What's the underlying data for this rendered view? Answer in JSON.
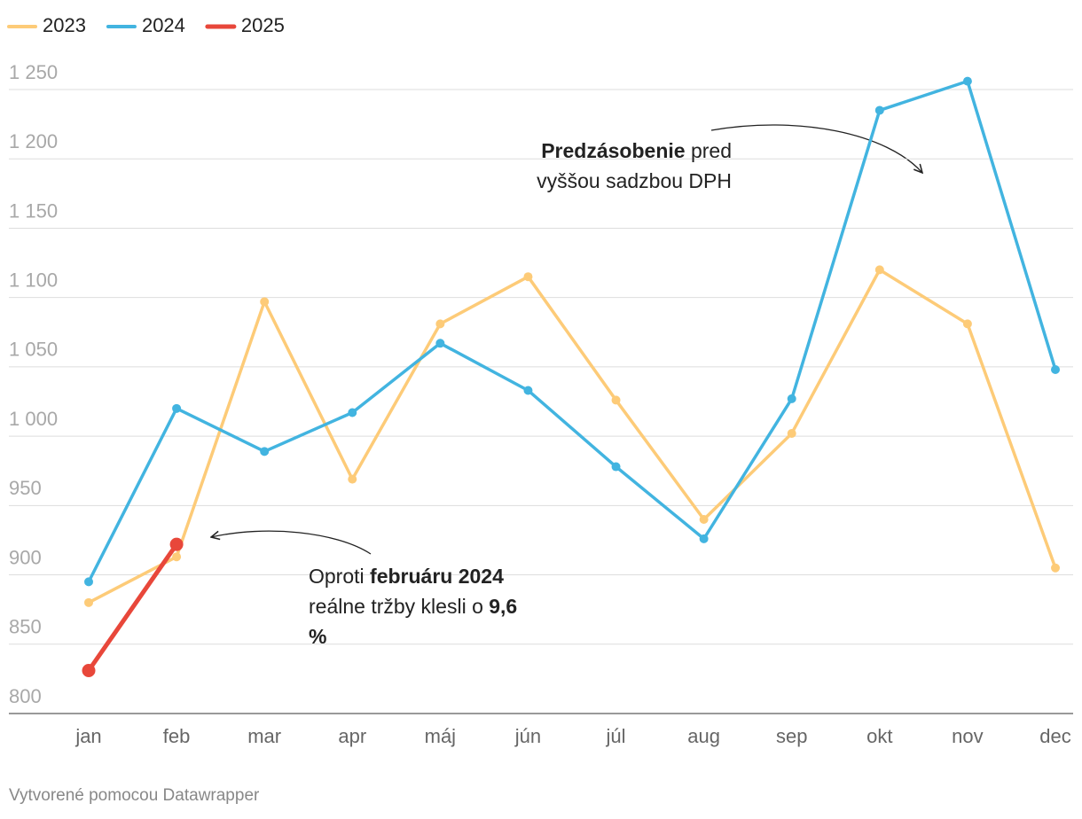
{
  "chart_data": {
    "type": "line",
    "categories": [
      "jan",
      "feb",
      "mar",
      "apr",
      "máj",
      "jún",
      "júl",
      "aug",
      "sep",
      "okt",
      "nov",
      "dec"
    ],
    "series": [
      {
        "name": "2023",
        "color": "#fdcb78",
        "values": [
          880,
          913,
          1097,
          969,
          1081,
          1115,
          1026,
          940,
          1002,
          1120,
          1081,
          905
        ]
      },
      {
        "name": "2024",
        "color": "#42b4e0",
        "values": [
          895,
          1020,
          989,
          1017,
          1067,
          1033,
          978,
          926,
          1027,
          1235,
          1256,
          1048
        ]
      },
      {
        "name": "2025",
        "color": "#e8473a",
        "values": [
          831,
          922,
          null,
          null,
          null,
          null,
          null,
          null,
          null,
          null,
          null,
          null
        ]
      }
    ],
    "ylim": [
      800,
      1250
    ],
    "yticks": [
      800,
      850,
      900,
      950,
      {
        "value": 1000,
        "label": "1 000"
      },
      {
        "value": 1050,
        "label": "1 050"
      },
      {
        "value": 1100,
        "label": "1 100"
      },
      {
        "value": 1150,
        "label": "1 150"
      },
      {
        "value": 1200,
        "label": "1 200"
      },
      {
        "value": 1250,
        "label": "1 250"
      }
    ],
    "grid": true,
    "legend": "top-left",
    "annotations": [
      {
        "lines": [
          [
            {
              "text": "Predzásobenie",
              "bold": true
            },
            {
              "text": " pred",
              "bold": false
            }
          ],
          [
            {
              "text": "vyššou sadzbou DPH",
              "bold": false
            }
          ]
        ]
      },
      {
        "lines": [
          [
            {
              "text": "Oproti ",
              "bold": false
            },
            {
              "text": "februáru 2024",
              "bold": true
            }
          ],
          [
            {
              "text": "reálne tržby klesli o ",
              "bold": false
            },
            {
              "text": "9,6",
              "bold": true
            }
          ],
          [
            {
              "text": "%",
              "bold": true
            }
          ]
        ]
      }
    ],
    "footer": "Vytvorené pomocou Datawrapper"
  }
}
